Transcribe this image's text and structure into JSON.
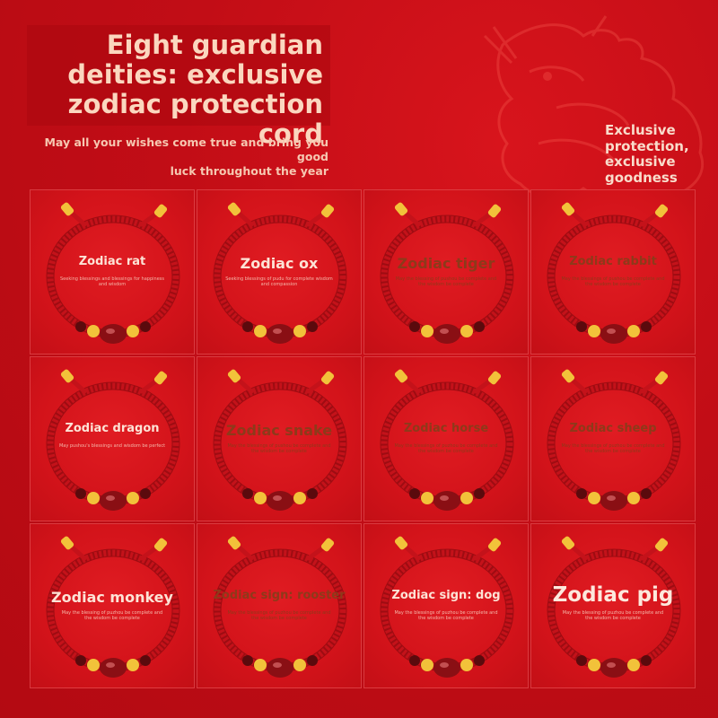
{
  "colors": {
    "background": "#c20d16",
    "cord": "#c4121a",
    "gold": "#f2c23a",
    "bead_main": "#8a0f14",
    "title_text": "#fbd7bf"
  },
  "header": {
    "title_line1": "Eight guardian",
    "title_line2": "deities: exclusive",
    "title_line3": "zodiac protection cord",
    "subtitle_line1": "May all your wishes come true and bring you good",
    "subtitle_line2": "luck throughout the year",
    "side_line1": "Exclusive",
    "side_line2": "protection,",
    "side_line3": "exclusive",
    "side_line4": "goodness"
  },
  "tiles": [
    {
      "title": "Zodiac rat",
      "sub": "Seeking blessings and blessings for happiness and wisdom"
    },
    {
      "title": "Zodiac ox",
      "sub": "Seeking blessings of pudu for complete wisdom and compassion"
    },
    {
      "title": "Zodiac tiger",
      "sub": "May the blessing of pushou be complete and the wisdom be complete"
    },
    {
      "title": "Zodiac rabbit",
      "sub": "May the blessings of pushou be complete and the wisdom be complete"
    },
    {
      "title": "Zodiac dragon",
      "sub": "May pushou's blessings and wisdom be perfect"
    },
    {
      "title": "Zodiac snake",
      "sub": "May the blessings of pushou be complete and the wisdom be complete"
    },
    {
      "title": "Zodiac horse",
      "sub": "May the blessings of puzhou be complete and the wisdom be complete"
    },
    {
      "title": "Zodiac sheep",
      "sub": "May the blessings of puzhou be complete and the wisdom be complete"
    },
    {
      "title": "Zodiac monkey",
      "sub": "May the blessing of puzhou be complete and the wisdom be complete"
    },
    {
      "title": "Zodiac sign: rooster",
      "sub": "May the blessings of puzhou be complete and the wisdom be complete"
    },
    {
      "title": "Zodiac sign: dog",
      "sub": "May the blessings of puzhou be complete and the wisdom be complete"
    },
    {
      "title": "Zodiac pig",
      "sub": "May the blessing of puzhou be complete and the wisdom be complete"
    }
  ]
}
